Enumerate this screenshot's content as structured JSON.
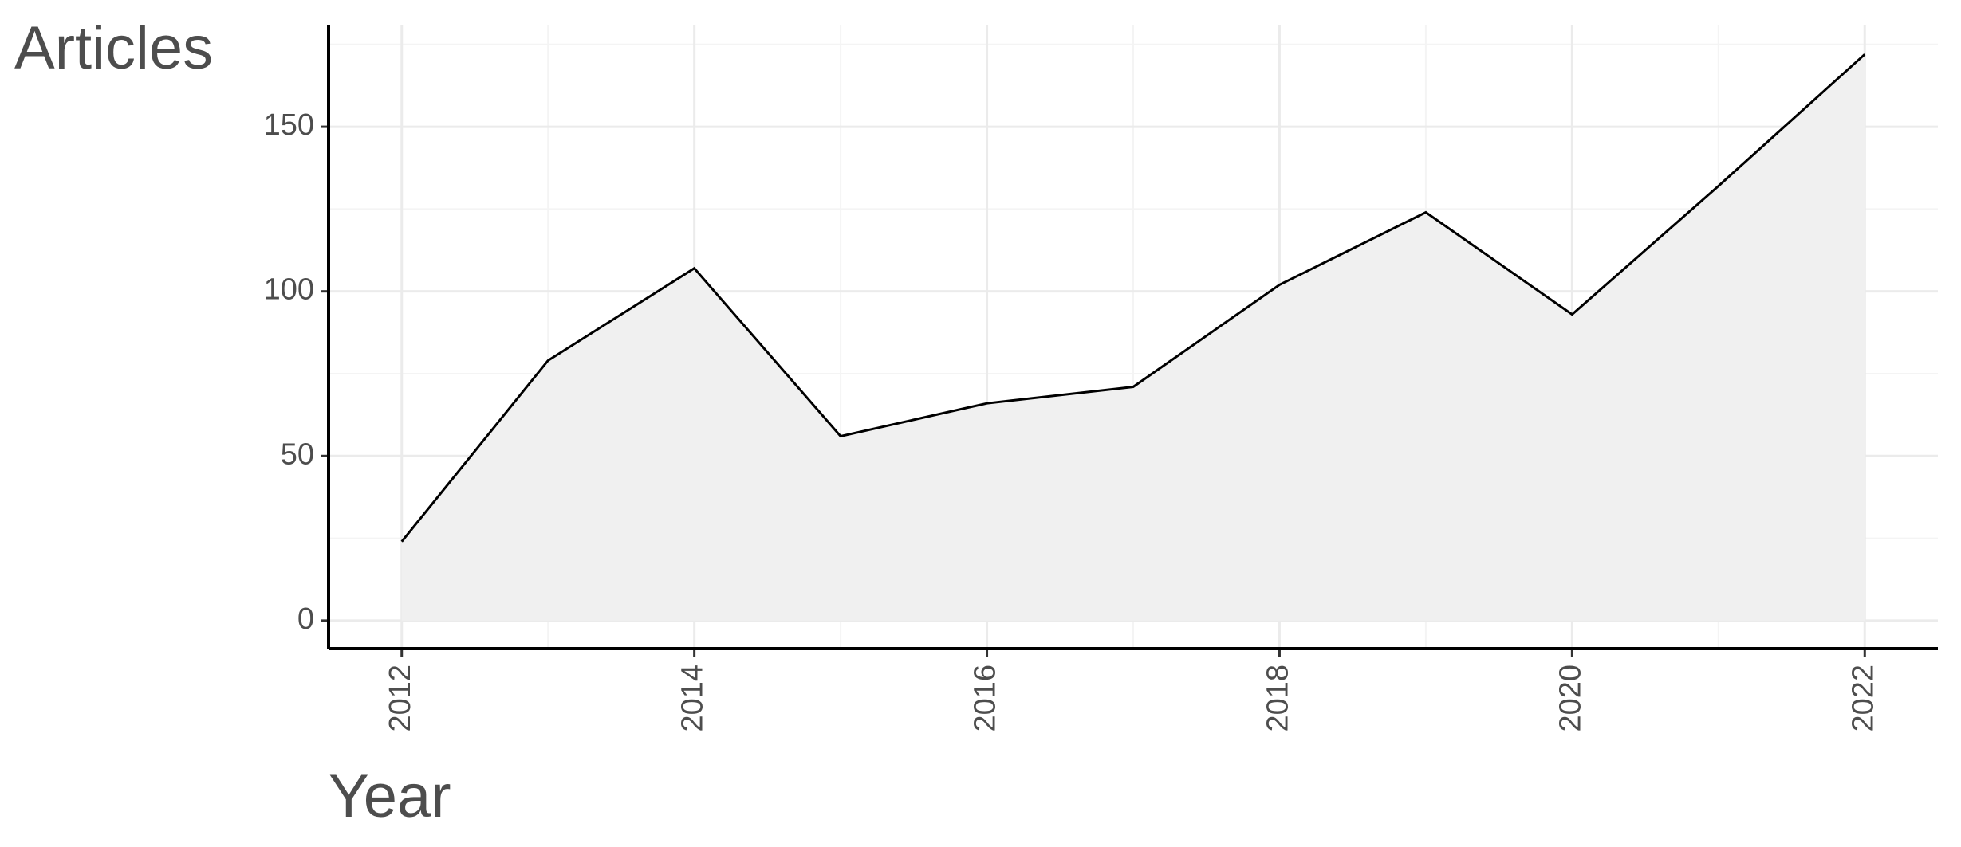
{
  "chart_data": {
    "type": "area",
    "y_label": "Articles",
    "x_label": "Year",
    "x": [
      2012,
      2013,
      2014,
      2015,
      2016,
      2017,
      2018,
      2019,
      2020,
      2021,
      2022
    ],
    "series": [
      {
        "name": "Articles",
        "color": "#000000",
        "fill": "#f0f0f0",
        "values": [
          24,
          79,
          107,
          56,
          66,
          71,
          102,
          124,
          93,
          132,
          172
        ]
      }
    ],
    "xlim": [
      2011.5,
      2022.5
    ],
    "xticks": [
      2012,
      2014,
      2016,
      2018,
      2020,
      2022
    ],
    "ylim": [
      -8.5,
      181
    ],
    "yticks": [
      0,
      50,
      100,
      150
    ],
    "grid": true
  }
}
